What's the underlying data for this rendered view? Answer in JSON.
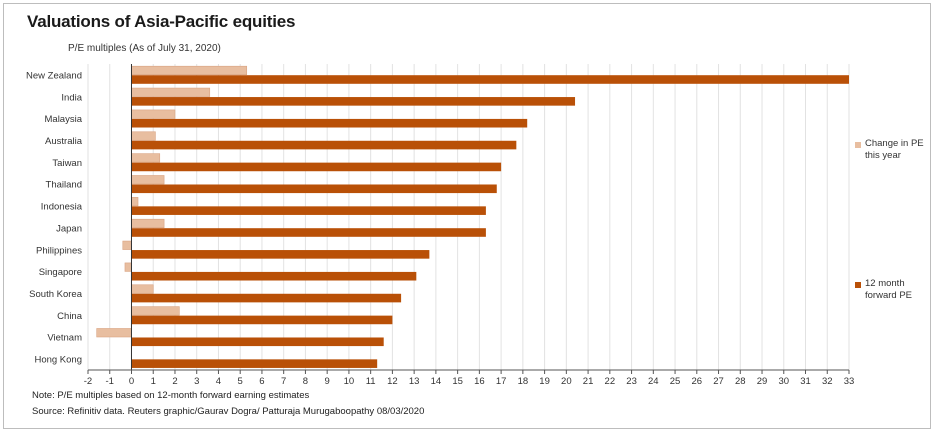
{
  "chart_data": {
    "type": "bar",
    "orientation": "horizontal",
    "title": "Valuations of Asia-Pacific equities",
    "subtitle": "P/E multiples (As of July 31, 2020)",
    "categories": [
      "New Zealand",
      "India",
      "Malaysia",
      "Australia",
      "Taiwan",
      "Thailand",
      "Indonesia",
      "Japan",
      "Philippines",
      "Singapore",
      "South Korea",
      "China",
      "Vietnam",
      "Hong Kong"
    ],
    "series": [
      {
        "name": "Change in PE this year",
        "color": "#e8bea0",
        "values": [
          5.3,
          3.6,
          2.0,
          1.1,
          1.3,
          1.5,
          0.3,
          1.5,
          -0.4,
          -0.3,
          1.0,
          2.2,
          -1.6,
          null
        ]
      },
      {
        "name": "12 month forward PE",
        "color": "#b95007",
        "values": [
          33.0,
          20.4,
          18.2,
          17.7,
          17.0,
          16.8,
          16.3,
          16.3,
          13.7,
          13.1,
          12.4,
          12.0,
          11.6,
          11.3
        ]
      }
    ],
    "xlim": [
      -2,
      33
    ],
    "xticks": [
      "-2",
      "-1",
      "0",
      "1",
      "2",
      "3",
      "4",
      "5",
      "6",
      "7",
      "8",
      "9",
      "10",
      "11",
      "12",
      "13",
      "14",
      "15",
      "16",
      "17",
      "18",
      "19",
      "20",
      "21",
      "22",
      "23",
      "24",
      "25",
      "26",
      "27",
      "28",
      "29",
      "30",
      "31",
      "32",
      "33"
    ],
    "legend": [
      {
        "line1": "Change in PE",
        "line2": "this year"
      },
      {
        "line1": "12 month",
        "line2": "forward PE"
      }
    ]
  },
  "footer": {
    "note": "Note: P/E multiples based on 12-month forward earning estimates",
    "source": "Source: Refinitiv data.  Reuters graphic/Gaurav Dogra/ Patturaja Murugaboopathy 08/03/2020"
  }
}
